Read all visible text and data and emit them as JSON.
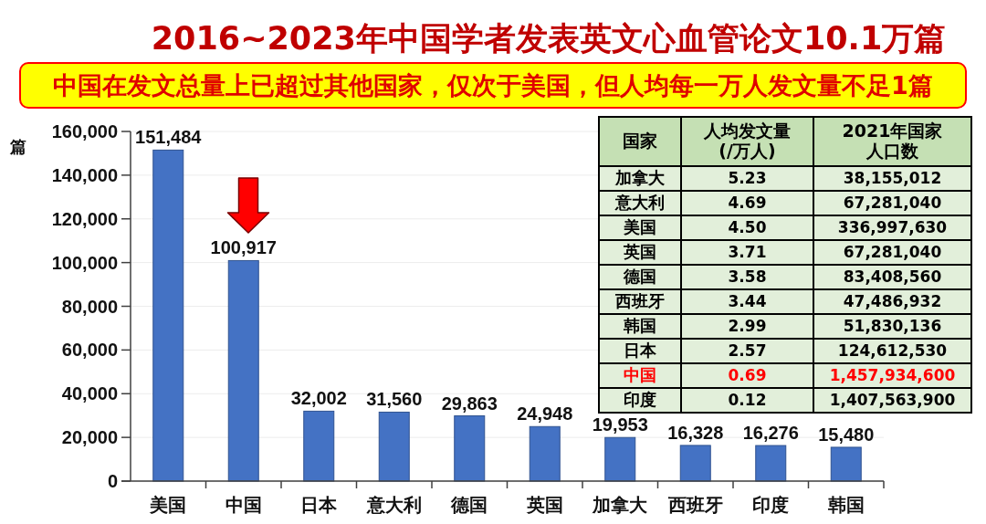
{
  "chart_data": [
    {
      "type": "bar",
      "title": "2016~2023年中国学者发表英文心血管论文10.1万篇",
      "subtitle": "中国在发文总量上已超过其他国家，仅次于美国，但人均每一万人发文量不足1篇",
      "ylabel": "篇",
      "categories": [
        "美国",
        "中国",
        "日本",
        "意大利",
        "德国",
        "英国",
        "加拿大",
        "西班牙",
        "印度",
        "韩国"
      ],
      "values": [
        151484,
        100917,
        32002,
        31560,
        29863,
        24948,
        19953,
        16328,
        16276,
        15480
      ],
      "value_labels": [
        "151,484",
        "100,917",
        "32,002",
        "31,560",
        "29,863",
        "24,948",
        "19,953",
        "16,328",
        "16,276",
        "15,480"
      ],
      "color": "#4472c4",
      "ylim": [
        0,
        160000
      ],
      "yticks": [
        0,
        {
          "value": 20000,
          "label": "20,000"
        },
        {
          "value": 40000,
          "label": "40,000"
        },
        {
          "value": 60000,
          "label": "60,000"
        },
        {
          "value": 80000,
          "label": "80,000"
        },
        {
          "value": 100000,
          "label": "100,000"
        },
        {
          "value": 120000,
          "label": "120,000"
        },
        {
          "value": 140000,
          "label": "140,000"
        },
        {
          "value": 160000,
          "label": "160,000"
        }
      ],
      "grid": "y"
    },
    {
      "type": "other",
      "annotations": [
        "国家",
        "人均发文量(/万人)",
        "2021年国家人口数",
        "加拿大",
        "5.23",
        "38,155,012",
        "意大利",
        "4.69",
        "67,281,040",
        "美国",
        "4.50",
        "336,997,630",
        "英国",
        "3.71",
        "67,281,040",
        "德国",
        "3.58",
        "83,408,560",
        "西班牙",
        "3.44",
        "47,486,932",
        "韩国",
        "2.99",
        "51,830,136",
        "日本",
        "2.57",
        "124,612,530",
        "中国",
        "0.69",
        "1,457,934,600",
        "印度",
        "0.12",
        "1,407,563,900"
      ],
      "colors": [
        "#000000",
        "#000000",
        "#000000",
        "#000000",
        "#000000",
        "#000000",
        "#000000",
        "#000000",
        "#000000",
        "#000000",
        "#000000",
        "#000000",
        "#000000",
        "#000000",
        "#000000",
        "#000000",
        "#000000",
        "#000000",
        "#000000",
        "#000000",
        "#000000",
        "#000000",
        "#000000",
        "#000000",
        "#000000",
        "#000000",
        "#000000",
        "#ff0000",
        "#ff0000",
        "#ff0000",
        "#000000",
        "#000000",
        "#000000"
      ]
    }
  ]
}
